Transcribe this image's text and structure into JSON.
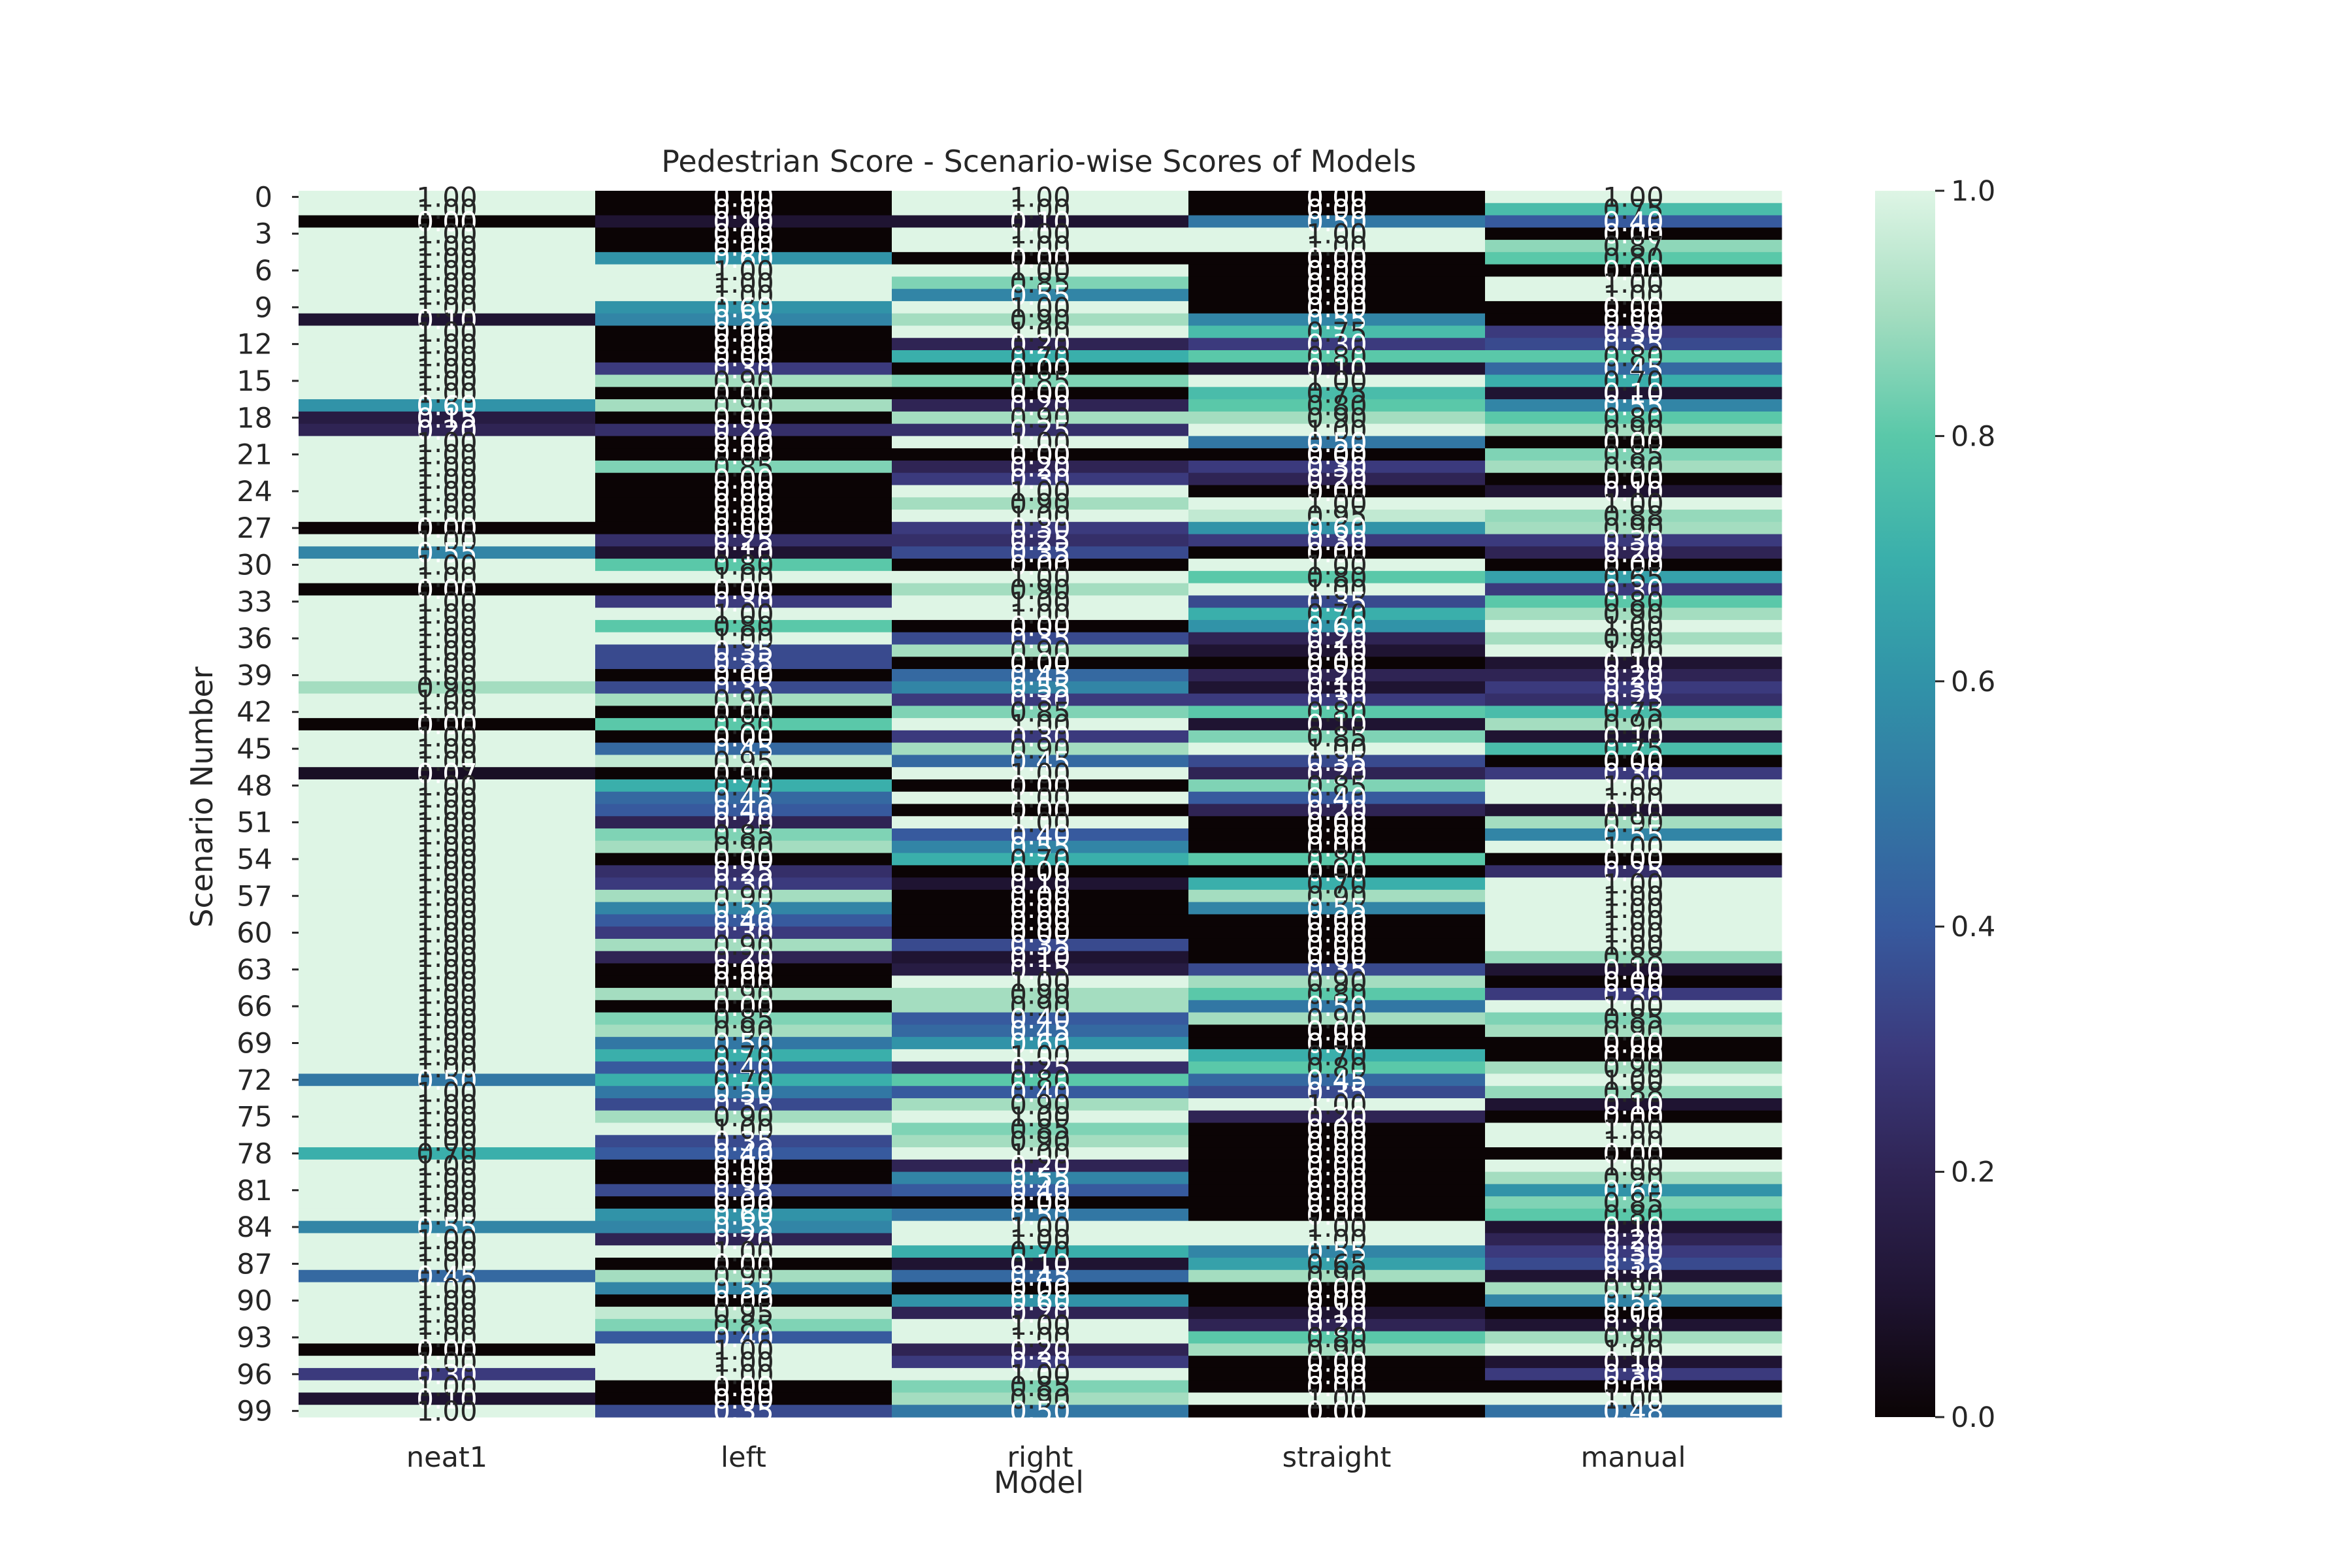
{
  "chart_data": {
    "type": "heatmap",
    "title": "Pedestrian Score - Scenario-wise Scores of Models",
    "xlabel": "Model",
    "ylabel": "Scenario Number",
    "columns": [
      "neat1",
      "left",
      "right",
      "straight",
      "manual"
    ],
    "rows": [
      0,
      1,
      2,
      3,
      4,
      5,
      6,
      7,
      8,
      9,
      10,
      11,
      12,
      13,
      14,
      15,
      16,
      17,
      18,
      19,
      20,
      21,
      22,
      23,
      24,
      25,
      26,
      27,
      28,
      29,
      30,
      31,
      32,
      33,
      34,
      35,
      36,
      37,
      38,
      39,
      40,
      41,
      42,
      43,
      44,
      45,
      46,
      47,
      48,
      49,
      50,
      51,
      52,
      53,
      54,
      55,
      56,
      57,
      58,
      59,
      60,
      61,
      62,
      63,
      64,
      65,
      66,
      67,
      68,
      69,
      70,
      71,
      72,
      73,
      74,
      75,
      76,
      77,
      78,
      79,
      80,
      81,
      82,
      83,
      84,
      85,
      86,
      87,
      88,
      89,
      90,
      91,
      92,
      93,
      94,
      95,
      96,
      97,
      98,
      99
    ],
    "y_tick_labels": [
      "0",
      "3",
      "6",
      "9",
      "12",
      "15",
      "18",
      "21",
      "24",
      "27",
      "30",
      "33",
      "36",
      "39",
      "42",
      "45",
      "48",
      "51",
      "54",
      "57",
      "60",
      "63",
      "66",
      "69",
      "72",
      "75",
      "78",
      "81",
      "84",
      "87",
      "90",
      "93",
      "96",
      "99"
    ],
    "annotation_format": "0.00",
    "vmin": 0.0,
    "vmax": 1.0,
    "colormap": "mako",
    "colorbar_ticks": [
      "0.0",
      "0.2",
      "0.4",
      "0.6",
      "0.8",
      "1.0"
    ],
    "values": {
      "neat1": [
        1,
        1,
        0,
        1,
        1,
        1,
        1,
        1,
        1,
        1,
        0.1,
        1,
        1,
        1,
        1,
        1,
        1,
        0.6,
        0.15,
        0.2,
        1,
        1,
        1,
        1,
        1,
        1,
        1,
        0,
        1,
        0.55,
        1,
        1,
        0,
        1,
        1,
        1,
        1,
        1,
        1,
        1,
        0.9,
        1,
        1,
        0,
        1,
        1,
        1,
        0.07,
        1,
        1,
        1,
        1,
        1,
        1,
        1,
        1,
        1,
        1,
        1,
        1,
        1,
        1,
        1,
        1,
        1,
        1,
        1,
        1,
        1,
        1,
        1,
        1,
        0.5,
        1,
        1,
        1,
        1,
        1,
        0.7,
        1,
        1,
        1,
        1,
        1,
        0.55,
        1,
        1,
        1,
        0.45,
        1,
        1,
        1,
        1,
        1,
        0,
        1,
        0.3,
        1,
        0.1,
        1
      ],
      "left": [
        0,
        0,
        0.1,
        0,
        0,
        0.6,
        1,
        1,
        1,
        0.6,
        0.55,
        0,
        0,
        0,
        0.3,
        0.9,
        0,
        0.9,
        0,
        0.25,
        0,
        0,
        0.85,
        0,
        0,
        0,
        0,
        0,
        0.25,
        0.1,
        0.8,
        1,
        0,
        0.3,
        1,
        0.8,
        1,
        0.35,
        0.35,
        0,
        0.35,
        0.9,
        0,
        0.8,
        0,
        0.45,
        0.95,
        0,
        0.7,
        0.45,
        0.4,
        0.2,
        0.85,
        0.9,
        0,
        0.25,
        0.3,
        0.9,
        0.55,
        0.4,
        0.3,
        0.9,
        0.2,
        0,
        0,
        0.9,
        0,
        0.85,
        0.9,
        0.5,
        0.7,
        0.4,
        0.7,
        0.5,
        0.35,
        0.9,
        1,
        0.35,
        0.4,
        0,
        0,
        0.35,
        0,
        0.6,
        0.55,
        0.2,
        1,
        0,
        0.9,
        0.55,
        0,
        0.95,
        0.85,
        0.4,
        1,
        1,
        1,
        0,
        0,
        0.35
      ],
      "right": [
        1,
        1,
        0.1,
        1,
        1,
        0,
        1,
        0.85,
        0.55,
        1,
        0.9,
        1,
        0.2,
        0.7,
        0,
        0.85,
        0,
        0.2,
        0.9,
        0.25,
        1,
        0,
        0.2,
        0.3,
        1,
        0.9,
        1,
        0.3,
        0.25,
        0.35,
        0,
        1,
        0.9,
        1,
        1,
        0,
        0.35,
        0.9,
        0,
        0.45,
        0.55,
        0.3,
        0.85,
        1,
        0.3,
        0.9,
        0.45,
        1,
        0,
        1,
        0,
        1,
        0.4,
        0.55,
        0.7,
        0,
        0.1,
        0,
        0,
        0,
        0,
        0.35,
        0.1,
        0.15,
        1,
        0.9,
        0.9,
        0.4,
        0.45,
        0.6,
        1,
        0.25,
        0.8,
        0.4,
        0.9,
        1,
        0.85,
        0.9,
        1,
        0.2,
        0.55,
        0.4,
        0,
        0.5,
        1,
        1,
        0.7,
        0.1,
        0.45,
        0,
        0.6,
        0.2,
        1,
        1,
        0.2,
        0.3,
        1,
        0.85,
        0.9,
        0.5
      ],
      "straight": [
        0,
        0,
        0.5,
        1,
        1,
        0,
        0,
        0,
        0,
        0,
        0.55,
        0.75,
        0.3,
        0.8,
        0.1,
        1,
        0.75,
        0.8,
        0.9,
        1,
        0.5,
        0,
        0.3,
        0.2,
        0,
        1,
        0.95,
        0.6,
        0.3,
        0,
        1,
        0.8,
        1,
        0.35,
        0.7,
        0.6,
        0.2,
        0.1,
        0,
        0.2,
        0.1,
        0.3,
        0.8,
        0.1,
        0.85,
        1,
        0.35,
        0.2,
        0.85,
        0.4,
        0.2,
        0,
        0,
        0,
        0.8,
        0,
        0.7,
        0.9,
        0.55,
        0,
        0,
        0,
        0,
        0.35,
        0.9,
        0.8,
        0.5,
        0.9,
        0,
        0,
        0.7,
        0.8,
        0.45,
        0.35,
        1,
        0.2,
        0,
        0,
        0,
        0,
        0,
        0,
        0,
        0,
        1,
        1,
        0.55,
        0.65,
        0.9,
        0,
        0,
        0.1,
        0.2,
        0.8,
        0.9,
        0,
        0,
        0,
        1,
        0
      ],
      "manual": [
        1,
        0.75,
        0.4,
        0,
        0.87,
        0.8,
        0,
        1,
        1,
        0,
        0,
        0.3,
        0.35,
        0.8,
        0.45,
        0.7,
        0.1,
        0.55,
        0.8,
        0.9,
        0,
        0.85,
        0.9,
        0,
        0.1,
        1,
        0.88,
        0.9,
        0.3,
        0.2,
        0,
        0.65,
        0.3,
        0.8,
        0.9,
        1,
        0.9,
        1,
        0.1,
        0.2,
        0.3,
        0.25,
        0.75,
        0.9,
        0.1,
        0.75,
        0,
        0.3,
        1,
        1,
        0.1,
        0.9,
        0.55,
        1,
        0,
        0.25,
        1,
        1,
        1,
        1,
        1,
        1,
        0.88,
        0.1,
        0,
        0.3,
        1,
        0.85,
        0.9,
        0,
        0,
        0.9,
        1,
        0.88,
        0.1,
        0,
        1,
        1,
        0,
        1,
        0.9,
        0.6,
        0.85,
        0.8,
        0.1,
        0.2,
        0.3,
        0.35,
        0.1,
        0.9,
        0.55,
        0,
        0.1,
        0.9,
        1,
        0.1,
        0.3,
        0,
        1,
        0.48
      ]
    }
  }
}
